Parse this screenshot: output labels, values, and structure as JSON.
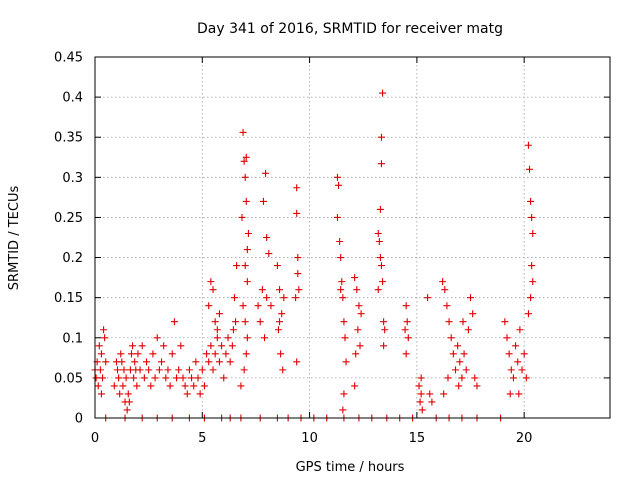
{
  "chart_data": {
    "type": "scatter",
    "title": "Day 341 of 2016, SRMTID for receiver matg",
    "xlabel": "GPS time / hours",
    "ylabel": "SRMTID / TECUs",
    "xlim": [
      0,
      24
    ],
    "ylim": [
      0,
      0.45
    ],
    "xticks": [
      0,
      5,
      10,
      15,
      20
    ],
    "yticks": [
      0,
      0.05,
      0.1,
      0.15,
      0.2,
      0.25,
      0.3,
      0.35,
      0.4,
      0.45
    ],
    "xtick_labels": [
      "0",
      "5",
      "10",
      "15",
      "20"
    ],
    "ytick_labels": [
      "0",
      "0.05",
      "0.1",
      "0.15",
      "0.2",
      "0.25",
      "0.3",
      "0.35",
      "0.4",
      "0.45"
    ],
    "grid": true,
    "marker": "+",
    "color": "#e00000",
    "series": [
      {
        "name": "SRMTID",
        "points": [
          [
            0.0,
            0.06
          ],
          [
            0.05,
            0.05
          ],
          [
            0.1,
            0.07
          ],
          [
            0.15,
            0.04
          ],
          [
            0.2,
            0.09
          ],
          [
            0.25,
            0.06
          ],
          [
            0.3,
            0.08
          ],
          [
            0.35,
            0.05
          ],
          [
            0.4,
            0.11
          ],
          [
            0.45,
            0.1
          ],
          [
            0.5,
            0.07
          ],
          [
            0.3,
            0.03
          ],
          [
            0.9,
            0.04
          ],
          [
            1.0,
            0.07
          ],
          [
            1.05,
            0.06
          ],
          [
            1.1,
            0.05
          ],
          [
            1.15,
            0.03
          ],
          [
            1.2,
            0.08
          ],
          [
            1.25,
            0.07
          ],
          [
            1.3,
            0.04
          ],
          [
            1.35,
            0.06
          ],
          [
            1.4,
            0.02
          ],
          [
            1.45,
            0.05
          ],
          [
            1.5,
            0.01
          ],
          [
            1.55,
            0.03
          ],
          [
            1.6,
            0.02
          ],
          [
            1.65,
            0.06
          ],
          [
            1.7,
            0.08
          ],
          [
            1.75,
            0.09
          ],
          [
            1.8,
            0.05
          ],
          [
            1.85,
            0.07
          ],
          [
            1.9,
            0.06
          ],
          [
            1.95,
            0.04
          ],
          [
            2.0,
            0.08
          ],
          [
            2.1,
            0.06
          ],
          [
            2.2,
            0.09
          ],
          [
            2.3,
            0.05
          ],
          [
            2.4,
            0.07
          ],
          [
            2.5,
            0.06
          ],
          [
            2.6,
            0.04
          ],
          [
            2.7,
            0.08
          ],
          [
            2.8,
            0.05
          ],
          [
            2.9,
            0.1
          ],
          [
            3.0,
            0.06
          ],
          [
            3.1,
            0.07
          ],
          [
            3.2,
            0.09
          ],
          [
            3.3,
            0.05
          ],
          [
            3.4,
            0.06
          ],
          [
            3.5,
            0.04
          ],
          [
            3.6,
            0.08
          ],
          [
            3.7,
            0.12
          ],
          [
            3.8,
            0.05
          ],
          [
            3.9,
            0.06
          ],
          [
            4.0,
            0.09
          ],
          [
            4.1,
            0.05
          ],
          [
            4.2,
            0.04
          ],
          [
            4.3,
            0.03
          ],
          [
            4.4,
            0.06
          ],
          [
            4.5,
            0.05
          ],
          [
            4.6,
            0.04
          ],
          [
            4.7,
            0.07
          ],
          [
            4.8,
            0.05
          ],
          [
            4.9,
            0.03
          ],
          [
            5.0,
            0.06
          ],
          [
            5.1,
            0.04
          ],
          [
            5.2,
            0.08
          ],
          [
            5.3,
            0.07
          ],
          [
            5.4,
            0.09
          ],
          [
            5.5,
            0.06
          ],
          [
            5.6,
            0.08
          ],
          [
            5.7,
            0.1
          ],
          [
            5.8,
            0.07
          ],
          [
            5.9,
            0.09
          ],
          [
            6.0,
            0.05
          ],
          [
            5.4,
            0.17
          ],
          [
            5.5,
            0.16
          ],
          [
            5.6,
            0.12
          ],
          [
            5.7,
            0.11
          ],
          [
            5.8,
            0.13
          ],
          [
            5.3,
            0.14
          ],
          [
            6.1,
            0.08
          ],
          [
            6.2,
            0.1
          ],
          [
            6.3,
            0.07
          ],
          [
            6.4,
            0.09
          ],
          [
            6.5,
            0.15
          ],
          [
            6.6,
            0.19
          ],
          [
            6.55,
            0.12
          ],
          [
            6.45,
            0.11
          ],
          [
            6.9,
            0.356
          ],
          [
            6.95,
            0.32
          ],
          [
            7.0,
            0.3
          ],
          [
            7.05,
            0.27
          ],
          [
            6.85,
            0.25
          ],
          [
            7.1,
            0.21
          ],
          [
            7.0,
            0.19
          ],
          [
            7.1,
            0.17
          ],
          [
            6.9,
            0.14
          ],
          [
            7.0,
            0.12
          ],
          [
            7.1,
            0.1
          ],
          [
            7.05,
            0.08
          ],
          [
            6.95,
            0.06
          ],
          [
            6.8,
            0.04
          ],
          [
            7.15,
            0.23
          ],
          [
            7.05,
            0.325
          ],
          [
            7.6,
            0.14
          ],
          [
            7.7,
            0.12
          ],
          [
            7.8,
            0.16
          ],
          [
            7.9,
            0.1
          ],
          [
            7.95,
            0.305
          ],
          [
            7.85,
            0.27
          ],
          [
            8.0,
            0.225
          ],
          [
            8.1,
            0.205
          ],
          [
            8.0,
            0.15
          ],
          [
            8.2,
            0.14
          ],
          [
            8.5,
            0.19
          ],
          [
            8.6,
            0.16
          ],
          [
            8.7,
            0.13
          ],
          [
            8.8,
            0.15
          ],
          [
            8.55,
            0.11
          ],
          [
            8.65,
            0.08
          ],
          [
            8.75,
            0.06
          ],
          [
            8.6,
            0.12
          ],
          [
            9.4,
            0.287
          ],
          [
            9.4,
            0.255
          ],
          [
            9.45,
            0.2
          ],
          [
            9.5,
            0.16
          ],
          [
            9.45,
            0.18
          ],
          [
            9.35,
            0.15
          ],
          [
            9.4,
            0.07
          ],
          [
            11.3,
            0.3
          ],
          [
            11.35,
            0.29
          ],
          [
            11.3,
            0.25
          ],
          [
            11.4,
            0.22
          ],
          [
            11.45,
            0.2
          ],
          [
            11.5,
            0.17
          ],
          [
            11.55,
            0.15
          ],
          [
            11.6,
            0.12
          ],
          [
            11.65,
            0.1
          ],
          [
            11.7,
            0.07
          ],
          [
            11.6,
            0.03
          ],
          [
            11.55,
            0.01
          ],
          [
            11.45,
            0.16
          ],
          [
            12.1,
            0.175
          ],
          [
            12.2,
            0.16
          ],
          [
            12.3,
            0.14
          ],
          [
            12.4,
            0.13
          ],
          [
            12.25,
            0.11
          ],
          [
            12.35,
            0.09
          ],
          [
            12.15,
            0.08
          ],
          [
            12.1,
            0.04
          ],
          [
            13.2,
            0.23
          ],
          [
            13.25,
            0.22
          ],
          [
            13.3,
            0.2
          ],
          [
            13.35,
            0.19
          ],
          [
            13.4,
            0.17
          ],
          [
            13.3,
            0.26
          ],
          [
            13.35,
            0.317
          ],
          [
            13.35,
            0.35
          ],
          [
            13.4,
            0.405
          ],
          [
            13.45,
            0.12
          ],
          [
            13.5,
            0.11
          ],
          [
            13.45,
            0.09
          ],
          [
            13.2,
            0.16
          ],
          [
            14.5,
            0.14
          ],
          [
            14.55,
            0.12
          ],
          [
            14.6,
            0.1
          ],
          [
            14.5,
            0.08
          ],
          [
            14.45,
            0.11
          ],
          [
            15.1,
            0.04
          ],
          [
            15.2,
            0.03
          ],
          [
            15.15,
            0.02
          ],
          [
            15.25,
            0.01
          ],
          [
            15.2,
            0.05
          ],
          [
            15.6,
            0.03
          ],
          [
            15.7,
            0.02
          ],
          [
            15.5,
            0.15
          ],
          [
            16.2,
            0.17
          ],
          [
            16.3,
            0.16
          ],
          [
            16.4,
            0.14
          ],
          [
            16.5,
            0.12
          ],
          [
            16.6,
            0.1
          ],
          [
            16.7,
            0.08
          ],
          [
            16.8,
            0.06
          ],
          [
            16.9,
            0.09
          ],
          [
            17.0,
            0.07
          ],
          [
            17.1,
            0.05
          ],
          [
            17.2,
            0.08
          ],
          [
            17.3,
            0.06
          ],
          [
            17.4,
            0.11
          ],
          [
            17.5,
            0.15
          ],
          [
            17.6,
            0.13
          ],
          [
            17.7,
            0.05
          ],
          [
            17.8,
            0.04
          ],
          [
            17.15,
            0.12
          ],
          [
            16.25,
            0.03
          ],
          [
            16.45,
            0.05
          ],
          [
            16.95,
            0.04
          ],
          [
            19.1,
            0.12
          ],
          [
            19.2,
            0.1
          ],
          [
            19.3,
            0.08
          ],
          [
            19.4,
            0.06
          ],
          [
            19.5,
            0.05
          ],
          [
            19.6,
            0.09
          ],
          [
            19.7,
            0.07
          ],
          [
            19.8,
            0.11
          ],
          [
            19.9,
            0.06
          ],
          [
            20.0,
            0.08
          ],
          [
            20.1,
            0.05
          ],
          [
            19.35,
            0.03
          ],
          [
            19.75,
            0.03
          ],
          [
            20.2,
            0.34
          ],
          [
            20.25,
            0.31
          ],
          [
            20.3,
            0.27
          ],
          [
            20.35,
            0.25
          ],
          [
            20.4,
            0.23
          ],
          [
            20.35,
            0.19
          ],
          [
            20.4,
            0.17
          ],
          [
            20.3,
            0.15
          ],
          [
            20.2,
            0.13
          ]
        ],
        "zero_times": [
          0.5,
          1.4,
          2.2,
          2.9,
          3.6,
          4.4,
          5.1,
          5.9,
          6.3,
          6.8,
          7.7,
          8.5,
          9.0,
          9.6,
          10.2,
          10.8,
          11.6,
          12.3,
          12.9,
          13.6,
          14.2,
          14.8,
          15.9,
          16.5,
          17.1,
          17.8,
          18.9
        ]
      }
    ]
  }
}
